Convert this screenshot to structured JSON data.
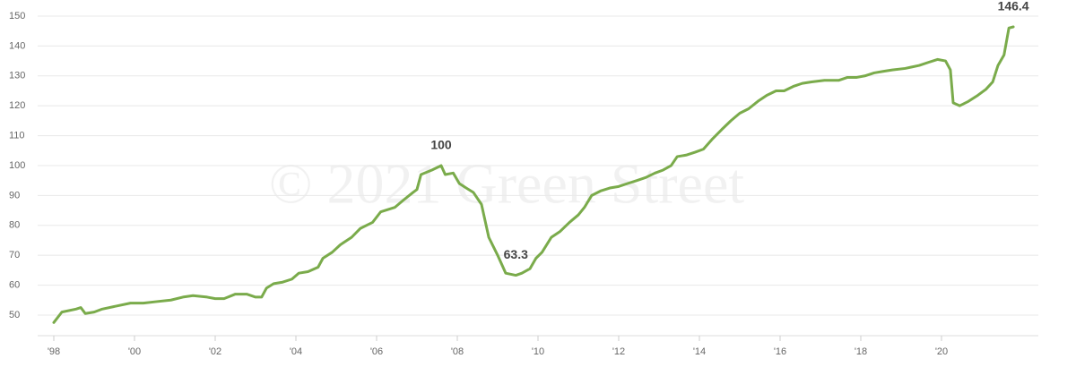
{
  "chart_data": {
    "type": "line",
    "watermark": "© 2021 Green Street",
    "color": "#7aab4b",
    "grid": true,
    "xlim": [
      1997.6,
      2022.4
    ],
    "xticks": [
      {
        "value": 1998,
        "label": "'98"
      },
      {
        "value": 2000,
        "label": "'00"
      },
      {
        "value": 2002,
        "label": "'02"
      },
      {
        "value": 2004,
        "label": "'04"
      },
      {
        "value": 2006,
        "label": "'06"
      },
      {
        "value": 2008,
        "label": "'08"
      },
      {
        "value": 2010,
        "label": "'10"
      },
      {
        "value": 2012,
        "label": "'12"
      },
      {
        "value": 2014,
        "label": "'14"
      },
      {
        "value": 2016,
        "label": "'16"
      },
      {
        "value": 2018,
        "label": "'18"
      },
      {
        "value": 2020,
        "label": "'20"
      }
    ],
    "ylim": [
      44,
      152
    ],
    "yticks": [
      50,
      60,
      70,
      80,
      90,
      100,
      110,
      120,
      130,
      140,
      150
    ],
    "x": [
      1998,
      1998.2,
      1998.55,
      1998.67,
      1998.78,
      1999,
      1999.2,
      1999.55,
      1999.9,
      2000.22,
      2000.55,
      2000.9,
      2001.2,
      2001.45,
      2001.8,
      2002,
      2002.22,
      2002.5,
      2002.78,
      2003,
      2003.15,
      2003.27,
      2003.45,
      2003.67,
      2003.9,
      2004.07,
      2004.3,
      2004.55,
      2004.67,
      2004.9,
      2005.1,
      2005.38,
      2005.6,
      2005.9,
      2006.1,
      2006.45,
      2006.67,
      2006.9,
      2007,
      2007.1,
      2007.37,
      2007.6,
      2007.7,
      2007.9,
      2008.05,
      2008.22,
      2008.4,
      2008.6,
      2008.78,
      2009,
      2009.2,
      2009.45,
      2009.6,
      2009.8,
      2009.95,
      2010.1,
      2010.33,
      2010.55,
      2010.78,
      2011,
      2011.15,
      2011.33,
      2011.55,
      2011.78,
      2012,
      2012.22,
      2012.45,
      2012.67,
      2012.9,
      2013.1,
      2013.3,
      2013.45,
      2013.67,
      2013.9,
      2014.1,
      2014.33,
      2014.55,
      2014.78,
      2015,
      2015.22,
      2015.45,
      2015.67,
      2015.9,
      2016.1,
      2016.33,
      2016.55,
      2016.78,
      2017.1,
      2017.45,
      2017.67,
      2017.9,
      2018.1,
      2018.33,
      2018.55,
      2018.78,
      2019.1,
      2019.45,
      2019.67,
      2019.9,
      2020.1,
      2020.22,
      2020.29,
      2020.45,
      2020.67,
      2020.9,
      2021.1,
      2021.27,
      2021.4,
      2021.55,
      2021.67,
      2021.78
    ],
    "values": [
      47.5,
      51,
      52,
      52.5,
      50.5,
      51,
      52,
      53,
      54,
      54,
      54.5,
      55,
      56,
      56.5,
      56,
      55.5,
      55.5,
      57,
      57,
      56,
      56,
      59,
      60.5,
      61,
      62,
      64,
      64.5,
      66,
      69,
      71,
      73.5,
      76,
      79,
      81,
      84.5,
      86,
      88.5,
      91,
      92,
      97,
      98.5,
      100,
      97,
      97.5,
      94,
      92.5,
      91,
      87,
      76,
      70,
      64,
      63.3,
      64,
      65.5,
      69,
      71,
      76,
      78,
      81,
      83.5,
      86,
      90,
      91.5,
      92.5,
      93,
      94,
      95,
      96,
      97.5,
      98.5,
      100,
      103,
      103.5,
      104.5,
      105.5,
      109,
      112,
      115,
      117.5,
      119,
      121.5,
      123.5,
      125,
      125,
      126.5,
      127.5,
      128,
      128.5,
      128.5,
      129.5,
      129.5,
      130,
      131,
      131.5,
      132,
      132.5,
      133.5,
      134.5,
      135.5,
      135,
      132,
      121,
      120,
      121.5,
      123.5,
      125.5,
      128,
      133.5,
      137,
      146,
      146.4
    ],
    "value_labels": [
      null,
      null,
      null,
      null,
      null,
      null,
      null,
      null,
      null,
      null,
      null,
      null,
      null,
      null,
      null,
      null,
      null,
      null,
      null,
      null,
      null,
      null,
      null,
      null,
      null,
      null,
      null,
      null,
      null,
      null,
      null,
      null,
      null,
      null,
      null,
      null,
      null,
      null,
      null,
      null,
      null,
      "100",
      null,
      null,
      null,
      null,
      null,
      null,
      null,
      null,
      null,
      "63.3",
      null,
      null,
      null,
      null,
      null,
      null,
      null,
      null,
      null,
      null,
      null,
      null,
      null,
      null,
      null,
      null,
      null,
      null,
      null,
      null,
      null,
      null,
      null,
      null,
      null,
      null,
      null,
      null,
      null,
      null,
      null,
      null,
      null,
      null,
      null,
      null,
      null,
      null,
      null,
      null,
      null,
      null,
      null,
      null,
      null,
      null,
      null,
      null,
      null,
      null,
      null,
      null,
      null,
      null,
      null,
      null,
      null,
      null,
      "146.4"
    ]
  }
}
